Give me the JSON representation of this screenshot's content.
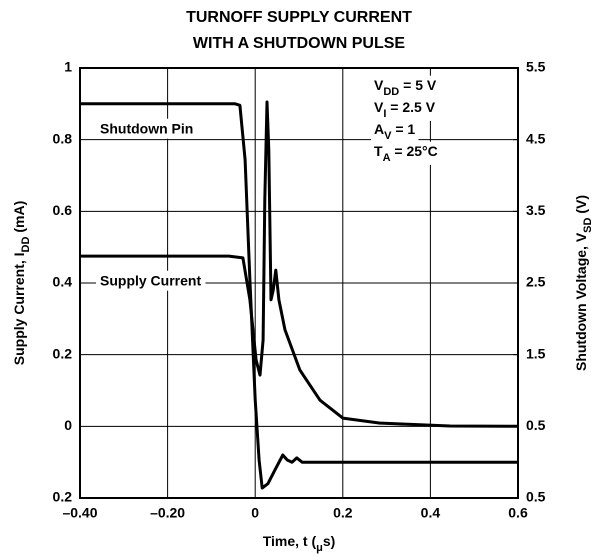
{
  "chart_data": {
    "type": "line",
    "title": [
      "TURNOFF SUPPLY CURRENT",
      "WITH A SHUTDOWN PULSE"
    ],
    "xlabel": [
      "Time, t (",
      "μ",
      "s)"
    ],
    "ylabel": [
      "Supply Current, I",
      "DD",
      "  (mA)"
    ],
    "y2label": [
      "Shutdown Voltage, V",
      "SD",
      "  (V)"
    ],
    "annotations": [
      [
        "V",
        "DD",
        " = 5 V"
      ],
      [
        "V",
        "I",
        " = 2.5 V"
      ],
      [
        "A",
        "V",
        " = 1"
      ],
      [
        "T",
        "A",
        " = 25°C"
      ]
    ],
    "xlim": [
      -0.4,
      0.6
    ],
    "xticks": [
      {
        "value": -0.4,
        "label": "–0.40"
      },
      {
        "value": -0.2,
        "label": "–0.20"
      },
      0,
      0.2,
      0.4,
      0.6
    ],
    "ylim": [
      -0.2,
      1
    ],
    "yticks": [
      {
        "value": -0.2,
        "label": "0.2"
      },
      0,
      0.2,
      0.4,
      0.6,
      0.8,
      1
    ],
    "y2lim": [
      -0.5,
      5.5
    ],
    "y2ticks": [
      {
        "value": -0.5,
        "label": "0.5"
      },
      0.5,
      1.5,
      2.5,
      3.5,
      4.5,
      5.5
    ],
    "grid": true,
    "series": [
      {
        "name": "Shutdown Pin",
        "color": "#000000",
        "axis": "y2",
        "x": [
          -0.4,
          -0.046,
          -0.035,
          -0.023,
          -0.012,
          0.0,
          0.009,
          0.016,
          0.029,
          0.045,
          0.063,
          0.073,
          0.084,
          0.095,
          0.107,
          0.6
        ],
        "values": [
          5.0,
          5.0,
          4.98,
          4.22,
          2.54,
          0.87,
          0.03,
          -0.36,
          -0.3,
          -0.11,
          0.1,
          0.03,
          0.0,
          0.06,
          0.0,
          0.0
        ]
      },
      {
        "name": "Supply Current",
        "color": "#000000",
        "axis": "y",
        "x": [
          -0.4,
          -0.06,
          -0.028,
          -0.012,
          0.002,
          0.011,
          0.018,
          0.022,
          0.027,
          0.031,
          0.036,
          0.041,
          0.047,
          0.054,
          0.068,
          0.102,
          0.148,
          0.2,
          0.285,
          0.445,
          0.6
        ],
        "values": [
          0.475,
          0.475,
          0.47,
          0.353,
          0.185,
          0.143,
          0.241,
          0.632,
          0.905,
          0.771,
          0.353,
          0.38,
          0.436,
          0.353,
          0.269,
          0.157,
          0.073,
          0.023,
          0.009,
          0.001,
          0.0
        ]
      }
    ]
  }
}
